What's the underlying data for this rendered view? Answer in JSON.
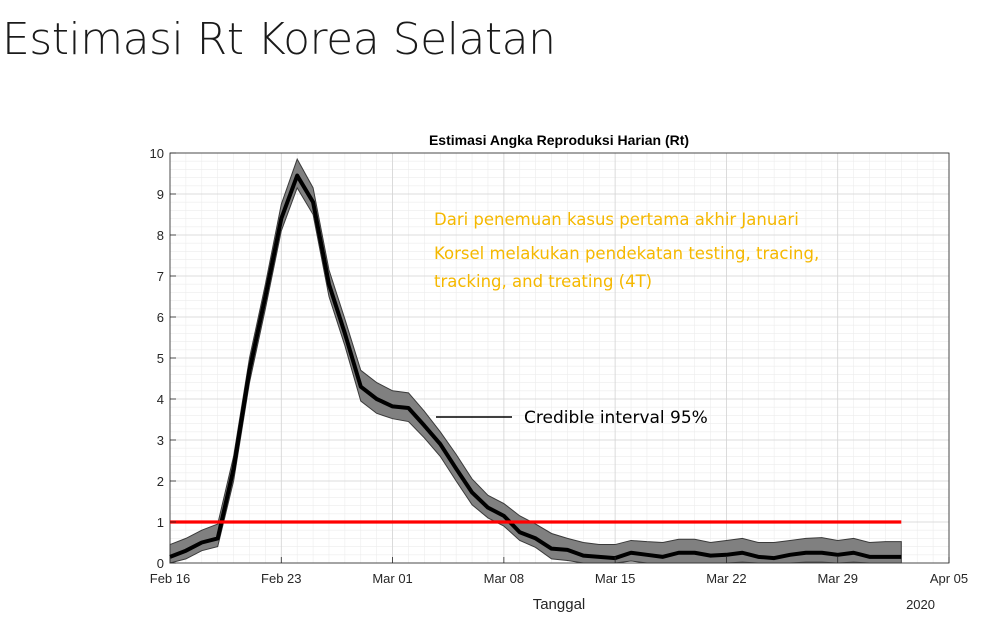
{
  "slide": {
    "title": "Estimasi Rt Korea Selatan"
  },
  "chart_data": {
    "type": "line",
    "title": "Estimasi Angka Reproduksi Harian (Rt)",
    "xlabel": "Tanggal",
    "ylabel": "",
    "year_label": "2020",
    "x_ticks": [
      "Feb 16",
      "Feb 23",
      "Mar 01",
      "Mar 08",
      "Mar 15",
      "Mar 22",
      "Mar 29",
      "Apr 05"
    ],
    "xlim": [
      "2020-02-16",
      "2020-04-05"
    ],
    "ylim": [
      0,
      10
    ],
    "y_ticks": [
      0,
      1,
      2,
      3,
      4,
      5,
      6,
      7,
      8,
      9,
      10
    ],
    "grid": true,
    "threshold": {
      "value": 1,
      "color": "#ff0000",
      "start": "2020-02-16",
      "end": "2020-04-02"
    },
    "series": [
      {
        "x": [
          "2020-02-16",
          "2020-02-17",
          "2020-02-18",
          "2020-02-19",
          "2020-02-20",
          "2020-02-21",
          "2020-02-22",
          "2020-02-23",
          "2020-02-24",
          "2020-02-25",
          "2020-02-26",
          "2020-02-27",
          "2020-02-28",
          "2020-02-29",
          "2020-03-01",
          "2020-03-02",
          "2020-03-03",
          "2020-03-04",
          "2020-03-05",
          "2020-03-06",
          "2020-03-07",
          "2020-03-08",
          "2020-03-09",
          "2020-03-10",
          "2020-03-11",
          "2020-03-12",
          "2020-03-13",
          "2020-03-14",
          "2020-03-15",
          "2020-03-16",
          "2020-03-17",
          "2020-03-18",
          "2020-03-19",
          "2020-03-20",
          "2020-03-21",
          "2020-03-22",
          "2020-03-23",
          "2020-03-24",
          "2020-03-25",
          "2020-03-26",
          "2020-03-27",
          "2020-03-28",
          "2020-03-29",
          "2020-03-30",
          "2020-03-31",
          "2020-04-01",
          "2020-04-02"
        ],
        "y": [
          0.15,
          0.3,
          0.5,
          0.6,
          2.3,
          4.7,
          6.5,
          8.4,
          9.45,
          8.8,
          6.8,
          5.6,
          4.3,
          4.0,
          3.82,
          3.78,
          3.35,
          2.9,
          2.3,
          1.72,
          1.35,
          1.15,
          0.75,
          0.6,
          0.35,
          0.32,
          0.18,
          0.15,
          0.12,
          0.25,
          0.2,
          0.15,
          0.25,
          0.25,
          0.18,
          0.2,
          0.25,
          0.15,
          0.12,
          0.2,
          0.25,
          0.25,
          0.2,
          0.25,
          0.15,
          0.15,
          0.15
        ],
        "lower": [
          0.0,
          0.1,
          0.3,
          0.4,
          2.0,
          4.4,
          6.2,
          8.1,
          9.15,
          8.5,
          6.5,
          5.3,
          3.95,
          3.65,
          3.52,
          3.45,
          3.05,
          2.6,
          2.0,
          1.42,
          1.1,
          0.9,
          0.55,
          0.38,
          0.1,
          0.06,
          0.0,
          0.0,
          0.0,
          0.05,
          0.0,
          0.0,
          0.0,
          0.0,
          0.0,
          0.0,
          0.02,
          0.0,
          0.0,
          0.0,
          0.02,
          0.02,
          0.0,
          0.02,
          0.0,
          0.0,
          0.0
        ],
        "upper": [
          0.45,
          0.6,
          0.8,
          0.95,
          2.6,
          5.0,
          6.8,
          8.75,
          9.85,
          9.15,
          7.15,
          5.95,
          4.7,
          4.4,
          4.2,
          4.15,
          3.7,
          3.2,
          2.65,
          2.05,
          1.65,
          1.45,
          1.15,
          0.95,
          0.72,
          0.6,
          0.5,
          0.45,
          0.45,
          0.55,
          0.52,
          0.5,
          0.58,
          0.58,
          0.5,
          0.55,
          0.6,
          0.5,
          0.5,
          0.55,
          0.6,
          0.62,
          0.55,
          0.6,
          0.5,
          0.52,
          0.52
        ]
      }
    ],
    "annotations": {
      "note": [
        "Dari penemuan kasus pertama akhir Januari",
        "Korsel melakukan pendekatan testing, tracing,",
        "tracking, and treating (4T)"
      ],
      "note_color": "#f5b800",
      "ci_label": "Credible interval 95%"
    },
    "colors": {
      "line": "#000000",
      "band": "#808080",
      "threshold": "#ff0000"
    }
  }
}
